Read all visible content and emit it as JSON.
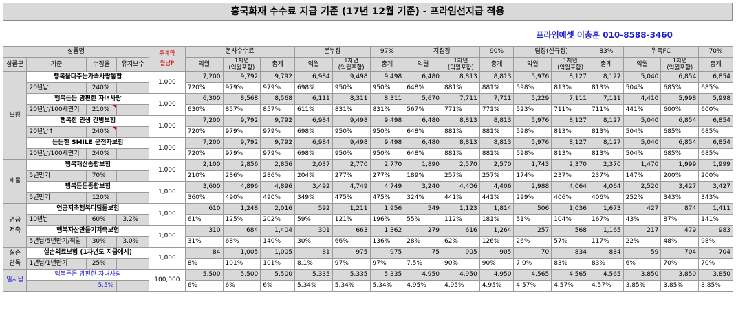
{
  "header": {
    "title": "흥국화재 수수료 지급 기준 (17년 12월 기준) - 프라임선지급 적용",
    "contact": "프라임에셋 이충훈 010-8588-3460"
  },
  "table": {
    "h1": {
      "product": "상품명",
      "premium": "주계약\n월납P",
      "hq": "본사수수료",
      "manager": "본부장",
      "manager_rate": "97%",
      "branch": "지점장",
      "branch_rate": "90%",
      "team": "팀장(신규정)",
      "team_rate": "83%",
      "fc": "위촉FC",
      "fc_rate": "70%"
    },
    "h2": {
      "group": "상품군",
      "basis": "기준",
      "rate": "수정율",
      "maint": "유지보수",
      "m1": "익월",
      "y1": "1차년\n(익월포함)",
      "total": "총계"
    },
    "groups": [
      {
        "name": "보장",
        "blue": false,
        "products": [
          {
            "name": "행복을다주는가족사랑통합",
            "sub": "20년납",
            "rate": "240%",
            "maint": "",
            "premium": "1,000",
            "tri": false,
            "amounts": [
              "7,200",
              "9,792",
              "9,792",
              "6,984",
              "9,498",
              "9,498",
              "6,480",
              "8,813",
              "8,813",
              "5,976",
              "8,127",
              "8,127",
              "5,040",
              "6,854",
              "6,854"
            ],
            "pcts": [
              "720%",
              "979%",
              "979%",
              "698%",
              "950%",
              "950%",
              "648%",
              "881%",
              "881%",
              "598%",
              "813%",
              "813%",
              "504%",
              "685%",
              "685%"
            ]
          },
          {
            "name": "행복든든 맘편한 자녀사랑",
            "sub": "20년납/100세만기",
            "rate": "210%",
            "maint": "",
            "premium": "1,000",
            "tri": true,
            "amounts": [
              "6,300",
              "8,568",
              "8,568",
              "6,111",
              "8,311",
              "8,311",
              "5,670",
              "7,711",
              "7,711",
              "5,229",
              "7,111",
              "7,111",
              "4,410",
              "5,998",
              "5,998"
            ],
            "pcts": [
              "630%",
              "857%",
              "857%",
              "611%",
              "831%",
              "831%",
              "567%",
              "771%",
              "771%",
              "523%",
              "711%",
              "711%",
              "441%",
              "600%",
              "600%"
            ]
          },
          {
            "name": "행복한 인생 간병보험",
            "sub": "20년납↑",
            "rate": "240%",
            "maint": "",
            "premium": "1,000",
            "tri": true,
            "amounts": [
              "7,200",
              "9,792",
              "9,792",
              "6,984",
              "9,498",
              "9,498",
              "6,480",
              "8,813",
              "8,813",
              "5,976",
              "8,127",
              "8,127",
              "5,040",
              "6,854",
              "6,854"
            ],
            "pcts": [
              "720%",
              "979%",
              "979%",
              "698%",
              "950%",
              "950%",
              "648%",
              "881%",
              "881%",
              "598%",
              "813%",
              "813%",
              "504%",
              "685%",
              "685%"
            ]
          },
          {
            "name": "든든한 SMILE 운전자보험",
            "sub": "20년납/100세만기",
            "rate": "240%",
            "maint": "",
            "premium": "1,000",
            "tri": false,
            "amounts": [
              "7,200",
              "9,792",
              "9,792",
              "6,984",
              "9,498",
              "9,498",
              "6,480",
              "8,813",
              "8,813",
              "5,976",
              "8,127",
              "8,127",
              "5,040",
              "6,854",
              "6,854"
            ],
            "pcts": [
              "720%",
              "979%",
              "979%",
              "698%",
              "950%",
              "950%",
              "648%",
              "881%",
              "881%",
              "598%",
              "813%",
              "813%",
              "504%",
              "685%",
              "685%"
            ]
          }
        ]
      },
      {
        "name": "재물",
        "blue": false,
        "products": [
          {
            "name": "행복재산종합보험",
            "sub": "5년만기",
            "rate": "70%",
            "maint": "",
            "premium": "1,000",
            "tri": false,
            "amounts": [
              "2,100",
              "2,856",
              "2,856",
              "2,037",
              "2,770",
              "2,770",
              "1,890",
              "2,570",
              "2,570",
              "1,743",
              "2,370",
              "2,370",
              "1,470",
              "1,999",
              "1,999"
            ],
            "pcts": [
              "210%",
              "286%",
              "286%",
              "204%",
              "277%",
              "277%",
              "189%",
              "257%",
              "257%",
              "174%",
              "237%",
              "237%",
              "147%",
              "200%",
              "200%"
            ]
          },
          {
            "name": "행복든든종합보험",
            "sub": "5년만기",
            "rate": "120%",
            "maint": "",
            "premium": "1,000",
            "tri": false,
            "amounts": [
              "3,600",
              "4,896",
              "4,896",
              "3,492",
              "4,749",
              "4,749",
              "3,240",
              "4,406",
              "4,406",
              "2,988",
              "4,064",
              "4,064",
              "2,520",
              "3,427",
              "3,427"
            ],
            "pcts": [
              "360%",
              "490%",
              "490%",
              "349%",
              "475%",
              "475%",
              "324%",
              "441%",
              "441%",
              "299%",
              "406%",
              "406%",
              "252%",
              "343%",
              "343%"
            ]
          }
        ]
      },
      {
        "name": "연금\n저축",
        "blue": false,
        "products": [
          {
            "name": "연금저축행복디딤돌보험",
            "sub": "10년납",
            "rate": "60%",
            "maint": "3.2%",
            "premium": "1,000",
            "tri": false,
            "amounts": [
              "610",
              "1,248",
              "2,016",
              "592",
              "1,211",
              "1,956",
              "549",
              "1,123",
              "1,814",
              "506",
              "1,036",
              "1,673",
              "427",
              "874",
              "1,411"
            ],
            "pcts": [
              "61%",
              "125%",
              "202%",
              "59%",
              "121%",
              "196%",
              "55%",
              "112%",
              "181%",
              "51%",
              "104%",
              "167%",
              "43%",
              "87%",
              "141%"
            ]
          },
          {
            "name": "행복자산만들기저축보험",
            "sub": "5년납/5년만기/적립",
            "rate": "30%",
            "maint": "3.0%",
            "premium": "1,000",
            "tri": false,
            "amounts": [
              "310",
              "684",
              "1,404",
              "301",
              "663",
              "1,362",
              "279",
              "616",
              "1,264",
              "257",
              "568",
              "1,165",
              "217",
              "479",
              "983"
            ],
            "pcts": [
              "31%",
              "68%",
              "140%",
              "30%",
              "66%",
              "136%",
              "28%",
              "62%",
              "126%",
              "26%",
              "57%",
              "117%",
              "22%",
              "48%",
              "98%"
            ]
          }
        ]
      },
      {
        "name": "실손\n단독",
        "blue": false,
        "products": [
          {
            "name": "실손의료보험 (1차년도 지급예시)",
            "sub": "1년납/1년만기",
            "rate": "25%",
            "maint": "",
            "premium": "1,000",
            "tri": false,
            "amounts": [
              "84",
              "1,005",
              "1,005",
              "81",
              "975",
              "975",
              "75",
              "905",
              "905",
              "70",
              "834",
              "834",
              "59",
              "704",
              "704"
            ],
            "pcts": [
              "8%",
              "101%",
              "101%",
              "8.1%",
              "97%",
              "97%",
              "7.5%",
              "90%",
              "90%",
              "7.0%",
              "83%",
              "83%",
              "6%",
              "70%",
              "70%"
            ]
          }
        ]
      },
      {
        "name": "일시납",
        "blue": true,
        "products": [
          {
            "name": "행복든든 맘편한 자녀사랑",
            "sub": "5.5%",
            "rate": "",
            "maint": "",
            "premium": "100,000",
            "tri": false,
            "blue": true,
            "amounts": [
              "5,500",
              "5,500",
              "5,500",
              "5,335",
              "5,335",
              "5,335",
              "4,950",
              "4,950",
              "4,950",
              "4,565",
              "4,565",
              "4,565",
              "3,850",
              "3,850",
              "3,850"
            ],
            "pcts": [
              "6%",
              "6%",
              "6%",
              "5.34%",
              "5.34%",
              "5.34%",
              "4.95%",
              "4.95%",
              "4.95%",
              "4.57%",
              "4.57%",
              "4.57%",
              "3.85%",
              "3.85%",
              "3.85%"
            ]
          }
        ]
      }
    ]
  }
}
